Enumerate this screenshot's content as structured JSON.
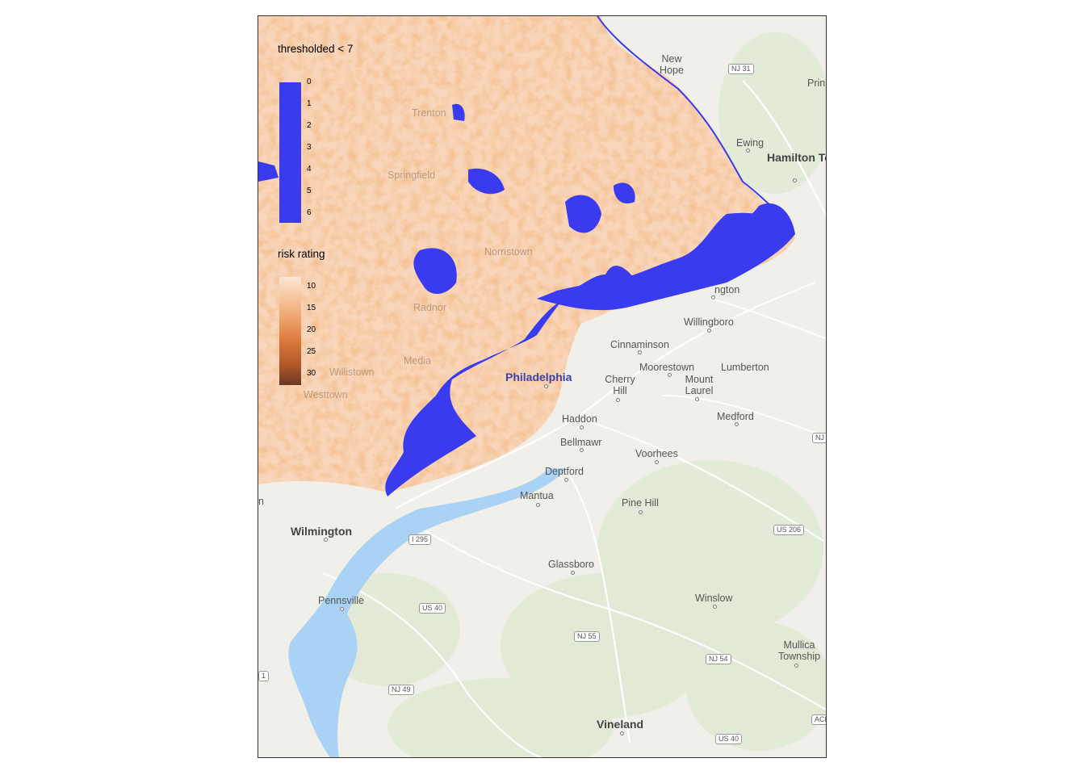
{
  "legends": {
    "threshold": {
      "title": "thresholded < 7",
      "ticks": [
        "0",
        "1",
        "2",
        "3",
        "4",
        "5",
        "6"
      ],
      "color": "#3a3aee"
    },
    "risk": {
      "title": "risk rating",
      "ticks": [
        "10",
        "15",
        "20",
        "25",
        "30"
      ],
      "gradient": [
        "#fbe6d4",
        "#f7c49c",
        "#eda06a",
        "#d9773d",
        "#b45a2c",
        "#6b3a23"
      ]
    }
  },
  "places": {
    "hamilton": "Hamilton Township",
    "ewing": "Ewing",
    "prin": "Prin",
    "new_hope": "New Hope",
    "burlington": "ngton",
    "willingboro": "Willingboro",
    "cinnaminson": "Cinnaminson",
    "moorestown": "Moorestown",
    "mount_laurel": "Mount Laurel",
    "lumberton": "Lumberton",
    "cherry_hill": "Cherry Hill",
    "medford": "Medford",
    "haddon": "Haddon",
    "bellmawr": "Bellmawr",
    "voorhees": "Voorhees",
    "deptford": "Deptford",
    "mantua": "Mantua",
    "pine_hill": "Pine Hill",
    "wilmington": "Wilmington",
    "glassboro": "Glassboro",
    "pennsville": "Pennsville",
    "winslow": "Winslow",
    "mullica": "Mullica Township",
    "vineland": "Vineland",
    "philadelphia": "Philadelphia",
    "west_chester_n": "n",
    "trenton_faint": "Trenton",
    "norristown_faint": "Norristown",
    "radnor_faint": "Radnor",
    "media_faint": "Media",
    "springfield_faint": "Springfield",
    "willistown_faint": "Willistown",
    "westtown_faint": "Westtown"
  },
  "roads": {
    "nj31": "NJ 31",
    "i295": "I 295",
    "us40a": "US 40",
    "nj55": "NJ 55",
    "nj54": "NJ 54",
    "us206": "US 206",
    "nj49": "NJ 49",
    "us40b": "US 40",
    "ace": "ACE",
    "nj_edge": "NJ",
    "one": "1"
  }
}
